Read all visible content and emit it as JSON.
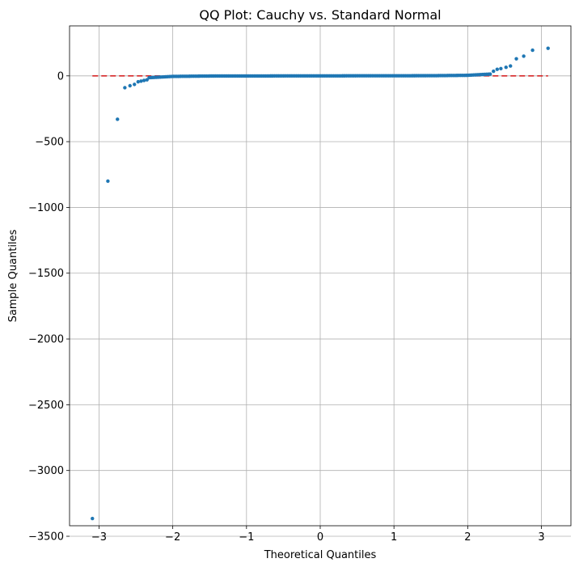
{
  "chart_data": {
    "type": "scatter",
    "title": "QQ Plot: Cauchy vs. Standard Normal",
    "xlabel": "Theoretical Quantiles",
    "ylabel": "Sample Quantiles",
    "xlim": [
      -3.4,
      3.4
    ],
    "ylim": [
      -3420,
      380
    ],
    "xticks": [
      -3,
      -2,
      -1,
      0,
      1,
      2,
      3
    ],
    "xtick_labels": [
      "−3",
      "−2",
      "−1",
      "0",
      "1",
      "2",
      "3"
    ],
    "yticks": [
      -3500,
      -3000,
      -2500,
      -2000,
      -1500,
      -1000,
      -500,
      0
    ],
    "ytick_labels": [
      "−3500",
      "−3000",
      "−2500",
      "−2000",
      "−1500",
      "−1000",
      "−500",
      "0"
    ],
    "grid": true,
    "series": [
      {
        "marker_color": "#1f77b4",
        "outliers": [
          {
            "x": -3.09,
            "y": -3365
          },
          {
            "x": -2.88,
            "y": -800
          },
          {
            "x": -2.75,
            "y": -330
          },
          {
            "x": -2.65,
            "y": -90
          },
          {
            "x": -2.58,
            "y": -75
          },
          {
            "x": -2.52,
            "y": -65
          },
          {
            "x": -2.47,
            "y": -45
          },
          {
            "x": -2.43,
            "y": -40
          },
          {
            "x": -2.39,
            "y": -35
          },
          {
            "x": -2.35,
            "y": -30
          },
          {
            "x": 2.35,
            "y": 35
          },
          {
            "x": 2.4,
            "y": 50
          },
          {
            "x": 2.45,
            "y": 55
          },
          {
            "x": 2.52,
            "y": 65
          },
          {
            "x": 2.58,
            "y": 75
          },
          {
            "x": 2.66,
            "y": 130
          },
          {
            "x": 2.76,
            "y": 150
          },
          {
            "x": 2.88,
            "y": 195
          },
          {
            "x": 3.09,
            "y": 210
          }
        ],
        "body": {
          "x_start": -2.32,
          "x_end": 2.32,
          "step": 0.025,
          "scale": 1.0
        }
      }
    ],
    "reference_line": {
      "x": [
        -3.09,
        3.09
      ],
      "y": [
        0,
        0
      ],
      "color": "#d62728",
      "style": "dashed"
    }
  }
}
